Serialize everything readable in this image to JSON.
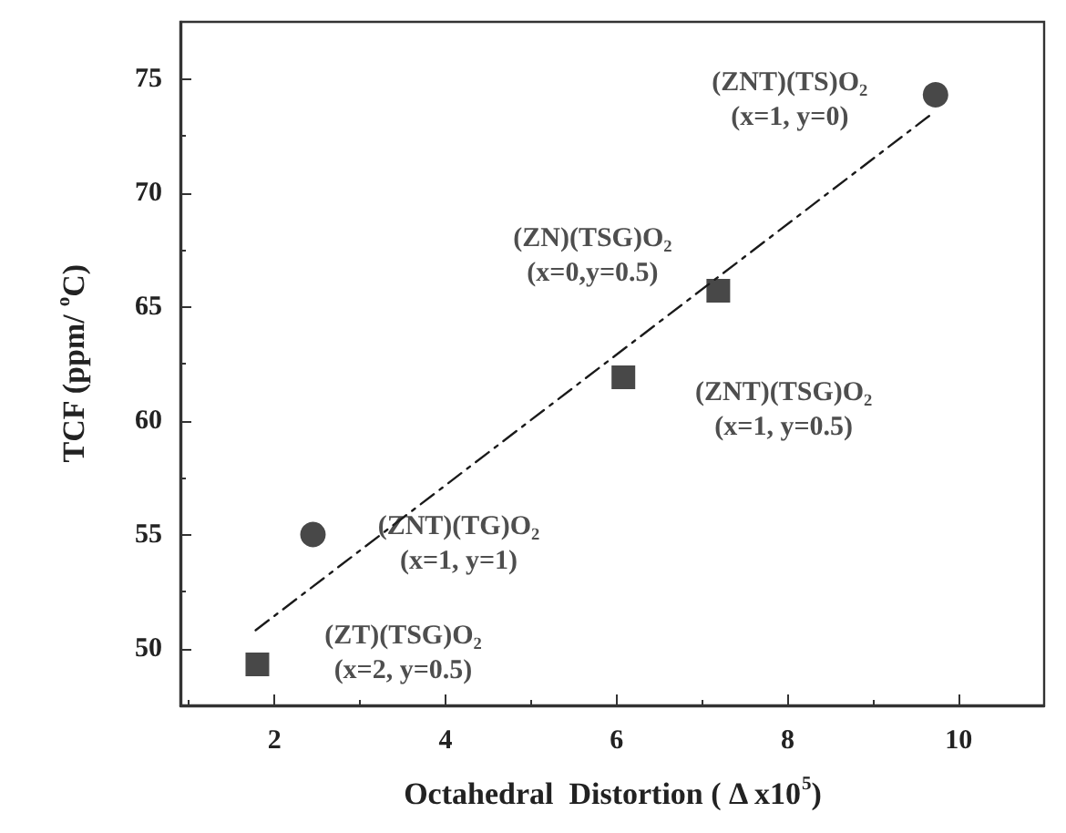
{
  "chart_data": {
    "type": "scatter",
    "xlabel": "Octahedral  Distortion ( Δ x10$^{5}$)",
    "ylabel": "TCF (ppm/ $^{o}$C)",
    "xlim": [
      0.9,
      11
    ],
    "xticks": [
      2,
      4,
      6,
      8,
      10
    ],
    "ylim": [
      47.5,
      77.5
    ],
    "yticks": [
      50,
      55,
      60,
      65,
      70,
      75
    ],
    "grid": false,
    "series": [
      {
        "color": "#1a1a1a",
        "marker": "circle",
        "x": [
          9.73,
          2.45
        ],
        "values": [
          74.3,
          55.0
        ]
      },
      {
        "color": "#1a1a1a",
        "marker": "square",
        "x": [
          7.19,
          6.08,
          1.8
        ],
        "values": [
          65.7,
          61.9,
          49.3
        ]
      },
      {
        "type": "line",
        "color": "#1a1a1a",
        "marker": "none",
        "line_style": "dashed",
        "x": [
          1.78,
          9.7
        ],
        "values": [
          50.8,
          73.5
        ]
      }
    ],
    "annotations": [
      {
        "text": "(ZNT)(TS)O$_{2}$\n(x=1, y=0)",
        "x": 9.73,
        "y": 74.3
      },
      {
        "text": "(ZN)(TSG)O$_{2}$\n(x=0,y=0.5)",
        "x": 7.19,
        "y": 65.7
      },
      {
        "text": "(ZNT)(TSG)O$_{2}$\n(x=1, y=0.5)",
        "x": 6.08,
        "y": 61.9
      },
      {
        "text": "(ZNT)(TG)O$_{2}$\n(x=1, y=1)",
        "x": 2.45,
        "y": 55.0
      },
      {
        "text": "(ZT)(TSG)O$_{2}$\n(x=2, y=0.5)",
        "x": 1.8,
        "y": 49.3
      }
    ]
  }
}
